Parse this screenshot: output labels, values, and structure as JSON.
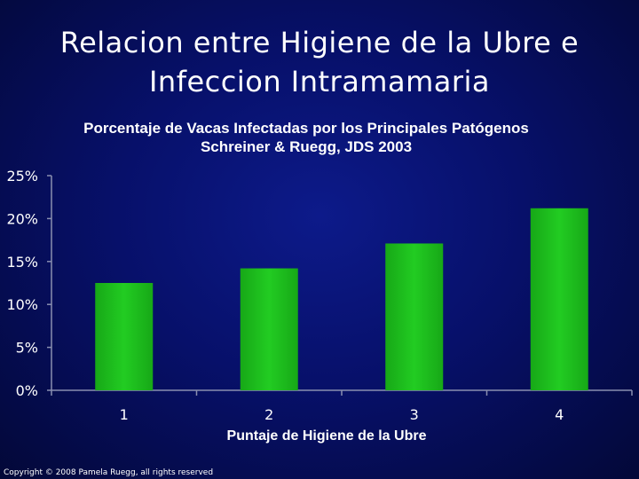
{
  "slide": {
    "title_line1": "Relacion entre Higiene de la Ubre e",
    "title_line2": "Infeccion Intramamaria",
    "copyright": "Copyright © 2008 Pamela Ruegg, all rights reserved"
  },
  "chart_data": {
    "type": "bar",
    "title": "Porcentaje de Vacas Infectadas por los Principales Patógenos",
    "subtitle": "Schreiner & Ruegg, JDS 2003",
    "xlabel": "Puntaje de Higiene de la Ubre",
    "ylabel": "",
    "categories": [
      "1",
      "2",
      "3",
      "4"
    ],
    "values": [
      12.5,
      14.2,
      17.1,
      21.2
    ],
    "ylim": [
      0,
      25
    ],
    "yticks": [
      0,
      5,
      10,
      15,
      20,
      25
    ],
    "ytick_labels": [
      "0%",
      "5%",
      "10%",
      "15%",
      "20%",
      "25%"
    ],
    "bar_color": "#22cc22",
    "grid": false,
    "legend": "none"
  }
}
